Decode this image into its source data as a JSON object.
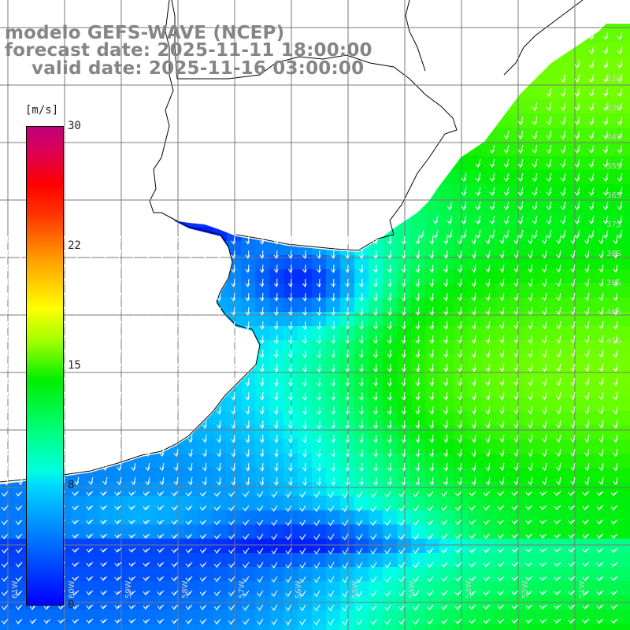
{
  "title": {
    "line1": "modelo GEFS-WAVE (NCEP)",
    "line2": "forecast date: 2025-11-11 18:00:00",
    "line3": "valid date: 2025-11-16 03:00:00"
  },
  "colorbar": {
    "unit": "[m/s]",
    "ticks": [
      {
        "label": "30",
        "value": 30
      },
      {
        "label": "22",
        "value": 22
      },
      {
        "label": "15",
        "value": 15
      },
      {
        "label": "8",
        "value": 8
      },
      {
        "label": "0",
        "value": 0
      }
    ],
    "colors": {
      "calm": "#0000ff",
      "light": "#00d8ff",
      "moderate": "#00ee00",
      "strong": "#ffff00",
      "gale": "#ff0000",
      "storm": "#c0007a"
    }
  },
  "map": {
    "land_color": "#ffffff",
    "coast_color": "#000000",
    "grid_color": "#808080",
    "arrow_color": "#ffffff",
    "lat_labels": [
      "32S",
      "33S",
      "34S",
      "35S",
      "36S",
      "37S",
      "38S",
      "39S",
      "40S",
      "41S"
    ],
    "lon_labels": [
      "61W",
      "60W",
      "59W",
      "58W",
      "57W",
      "56W",
      "55W",
      "54W",
      "53W",
      "52W",
      "51W"
    ]
  }
}
